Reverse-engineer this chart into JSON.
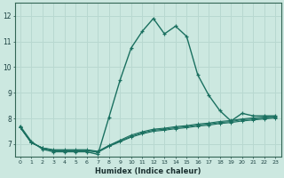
{
  "xlabel": "Humidex (Indice chaleur)",
  "ylabel": "",
  "background_color": "#cce8e0",
  "grid_color": "#b8d8d0",
  "line_color": "#1a7060",
  "xlim": [
    -0.5,
    23.5
  ],
  "ylim": [
    6.5,
    12.5
  ],
  "yticks": [
    7,
    8,
    9,
    10,
    11,
    12
  ],
  "xtick_labels": [
    "0",
    "1",
    "2",
    "3",
    "4",
    "5",
    "6",
    "7",
    "8",
    "9",
    "10",
    "11",
    "12",
    "13",
    "14",
    "15",
    "16",
    "17",
    "18",
    "19",
    "20",
    "21",
    "22",
    "23"
  ],
  "series1": [
    7.7,
    7.1,
    6.8,
    6.7,
    6.7,
    6.7,
    6.7,
    6.6,
    8.05,
    9.5,
    10.75,
    11.4,
    11.9,
    11.3,
    11.6,
    11.2,
    9.7,
    8.9,
    8.3,
    7.9,
    8.2,
    8.1,
    8.1,
    8.1
  ],
  "series2": [
    7.65,
    7.05,
    6.85,
    6.78,
    6.78,
    6.78,
    6.78,
    6.72,
    6.95,
    7.15,
    7.35,
    7.48,
    7.58,
    7.62,
    7.68,
    7.72,
    7.78,
    7.82,
    7.88,
    7.92,
    7.98,
    8.02,
    8.05,
    8.08
  ],
  "series3": [
    7.65,
    7.05,
    6.85,
    6.76,
    6.76,
    6.76,
    6.76,
    6.7,
    6.93,
    7.12,
    7.3,
    7.44,
    7.54,
    7.58,
    7.64,
    7.68,
    7.74,
    7.78,
    7.84,
    7.88,
    7.95,
    7.98,
    8.02,
    8.05
  ],
  "series4": [
    7.65,
    7.05,
    6.85,
    6.74,
    6.74,
    6.74,
    6.74,
    6.68,
    6.91,
    7.09,
    7.27,
    7.4,
    7.5,
    7.54,
    7.6,
    7.64,
    7.7,
    7.74,
    7.8,
    7.84,
    7.9,
    7.94,
    7.98,
    8.02
  ]
}
